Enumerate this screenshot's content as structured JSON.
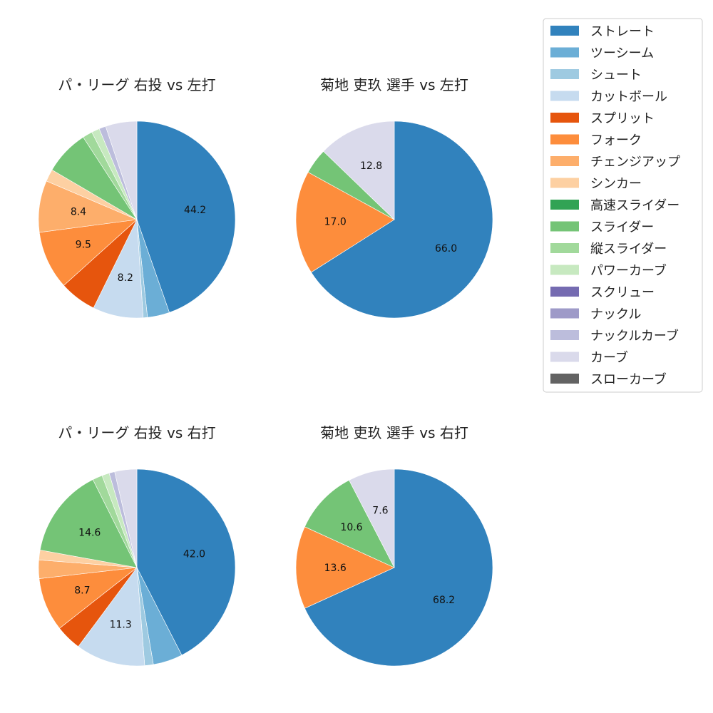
{
  "colors": {
    "ストレート": "#3182bd",
    "ツーシーム": "#6baed6",
    "シュート": "#9ecae1",
    "カットボール": "#c6dbef",
    "スプリット": "#e6550d",
    "フォーク": "#fd8d3c",
    "チェンジアップ": "#fdae6b",
    "シンカー": "#fdd0a2",
    "高速スライダー": "#31a354",
    "スライダー": "#74c476",
    "縦スライダー": "#a1d99b",
    "パワーカーブ": "#c7e9c0",
    "スクリュー": "#756bb1",
    "ナックル": "#9e9ac8",
    "ナックルカーブ": "#bcbddc",
    "カーブ": "#dadaeb",
    "スローカーブ": "#636363"
  },
  "legend": {
    "entries": [
      "ストレート",
      "ツーシーム",
      "シュート",
      "カットボール",
      "スプリット",
      "フォーク",
      "チェンジアップ",
      "シンカー",
      "高速スライダー",
      "スライダー",
      "縦スライダー",
      "パワーカーブ",
      "スクリュー",
      "ナックル",
      "ナックルカーブ",
      "カーブ",
      "スローカーブ"
    ],
    "placement": "top-right"
  },
  "chart_data": [
    {
      "type": "pie",
      "title": "パ・リーグ 右投 vs 左打",
      "start_angle": "top",
      "direction": "clockwise",
      "slices": [
        {
          "name": "ストレート",
          "value": 44.2,
          "label": "44.2"
        },
        {
          "name": "ツーシーム",
          "value": 3.6,
          "label": ""
        },
        {
          "name": "シュート",
          "value": 0.7,
          "label": ""
        },
        {
          "name": "カットボール",
          "value": 8.2,
          "label": "8.2"
        },
        {
          "name": "スプリット",
          "value": 6.0,
          "label": ""
        },
        {
          "name": "フォーク",
          "value": 9.5,
          "label": "9.5"
        },
        {
          "name": "チェンジアップ",
          "value": 8.4,
          "label": "8.4"
        },
        {
          "name": "シンカー",
          "value": 2.0,
          "label": ""
        },
        {
          "name": "スライダー",
          "value": 7.3,
          "label": ""
        },
        {
          "name": "縦スライダー",
          "value": 1.6,
          "label": ""
        },
        {
          "name": "パワーカーブ",
          "value": 1.3,
          "label": ""
        },
        {
          "name": "ナックルカーブ",
          "value": 1.1,
          "label": ""
        },
        {
          "name": "カーブ",
          "value": 5.1,
          "label": ""
        }
      ]
    },
    {
      "type": "pie",
      "title": "菊地 吏玖 選手 vs 左打",
      "start_angle": "top",
      "direction": "clockwise",
      "slices": [
        {
          "name": "ストレート",
          "value": 66.0,
          "label": "66.0"
        },
        {
          "name": "フォーク",
          "value": 17.0,
          "label": "17.0"
        },
        {
          "name": "スライダー",
          "value": 4.2,
          "label": ""
        },
        {
          "name": "カーブ",
          "value": 12.8,
          "label": "12.8"
        }
      ]
    },
    {
      "type": "pie",
      "title": "パ・リーグ 右投 vs 右打",
      "start_angle": "top",
      "direction": "clockwise",
      "slices": [
        {
          "name": "ストレート",
          "value": 42.0,
          "label": "42.0"
        },
        {
          "name": "ツーシーム",
          "value": 4.8,
          "label": ""
        },
        {
          "name": "シュート",
          "value": 1.4,
          "label": ""
        },
        {
          "name": "カットボール",
          "value": 11.3,
          "label": "11.3"
        },
        {
          "name": "スプリット",
          "value": 4.2,
          "label": ""
        },
        {
          "name": "フォーク",
          "value": 8.7,
          "label": "8.7"
        },
        {
          "name": "チェンジアップ",
          "value": 3.0,
          "label": ""
        },
        {
          "name": "シンカー",
          "value": 1.6,
          "label": ""
        },
        {
          "name": "スライダー",
          "value": 14.6,
          "label": "14.6"
        },
        {
          "name": "縦スライダー",
          "value": 1.6,
          "label": ""
        },
        {
          "name": "パワーカーブ",
          "value": 1.2,
          "label": ""
        },
        {
          "name": "ナックルカーブ",
          "value": 0.9,
          "label": ""
        },
        {
          "name": "カーブ",
          "value": 3.6,
          "label": ""
        }
      ]
    },
    {
      "type": "pie",
      "title": "菊地 吏玖 選手 vs 右打",
      "start_angle": "top",
      "direction": "clockwise",
      "slices": [
        {
          "name": "ストレート",
          "value": 68.2,
          "label": "68.2"
        },
        {
          "name": "フォーク",
          "value": 13.6,
          "label": "13.6"
        },
        {
          "name": "スライダー",
          "value": 10.6,
          "label": "10.6"
        },
        {
          "name": "カーブ",
          "value": 7.6,
          "label": "7.6"
        }
      ]
    }
  ]
}
